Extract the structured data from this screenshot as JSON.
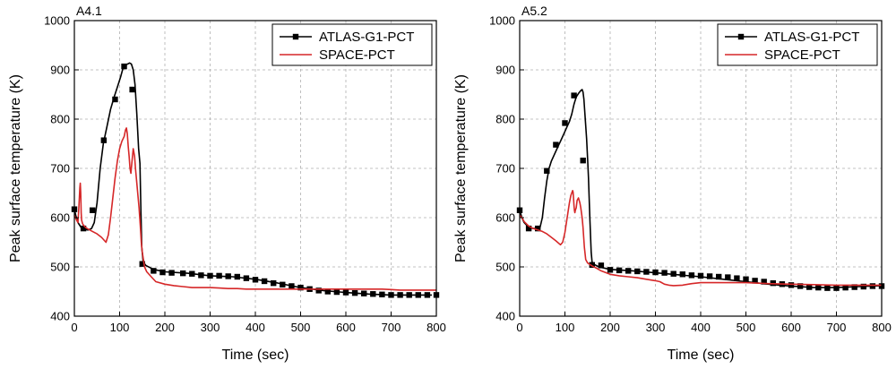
{
  "chart_data": [
    {
      "type": "line",
      "title": "A4.1",
      "xlabel": "Time (sec)",
      "ylabel": "Peak surface temperature (K)",
      "xlim": [
        0,
        800
      ],
      "ylim": [
        400,
        1000
      ],
      "xticks": [
        0,
        100,
        200,
        300,
        400,
        500,
        600,
        700,
        800
      ],
      "yticks": [
        400,
        500,
        600,
        700,
        800,
        900,
        1000
      ],
      "grid": true,
      "legend_position": "top-right",
      "series": [
        {
          "name": "ATLAS-G1-PCT",
          "color": "#000000",
          "marker": "square",
          "x": [
            0,
            3,
            8,
            15,
            22,
            30,
            38,
            44,
            50,
            57,
            64,
            72,
            80,
            88,
            95,
            102,
            108,
            113,
            118,
            122,
            126,
            130,
            134,
            138,
            142,
            145,
            147,
            149,
            152,
            158,
            175,
            200,
            250,
            300,
            350,
            400,
            450,
            500,
            550,
            600,
            650,
            700,
            750,
            790
          ],
          "y": [
            617,
            605,
            590,
            580,
            577,
            575,
            578,
            590,
            630,
            700,
            750,
            785,
            820,
            845,
            865,
            885,
            905,
            910,
            912,
            914,
            912,
            900,
            870,
            810,
            740,
            710,
            620,
            540,
            510,
            503,
            495,
            490,
            487,
            482,
            480,
            475,
            467,
            458,
            452,
            448,
            445,
            443,
            443,
            443
          ],
          "markers_x": [
            0,
            20,
            40,
            65,
            90,
            110,
            128,
            150,
            175,
            195,
            215,
            240,
            260,
            280,
            300,
            320,
            340,
            360,
            380,
            400,
            420,
            440,
            460,
            480,
            500,
            520,
            540,
            560,
            580,
            600,
            620,
            640,
            660,
            680,
            700,
            720,
            740,
            760,
            780,
            800
          ],
          "markers_y": [
            617,
            578,
            615,
            757,
            840,
            907,
            860,
            506,
            492,
            489,
            488,
            487,
            486,
            483,
            482,
            482,
            481,
            480,
            477,
            474,
            471,
            467,
            464,
            461,
            458,
            455,
            452,
            450,
            449,
            448,
            447,
            446,
            445,
            444,
            443,
            443,
            443,
            443,
            443,
            443
          ]
        },
        {
          "name": "SPACE-PCT",
          "color": "#d62728",
          "marker": "none",
          "x": [
            0,
            5,
            8,
            10,
            12,
            13,
            14,
            15,
            16,
            18,
            20,
            25,
            30,
            40,
            50,
            60,
            70,
            75,
            80,
            85,
            90,
            95,
            100,
            105,
            110,
            113,
            115,
            117,
            119,
            121,
            123,
            125,
            127,
            130,
            133,
            135,
            137,
            140,
            143,
            146,
            148,
            150,
            155,
            160,
            170,
            180,
            200,
            220,
            240,
            260,
            280,
            300,
            320,
            340,
            360,
            380,
            400,
            420,
            440,
            460,
            480,
            500,
            520,
            540,
            560,
            580,
            600,
            620,
            640,
            660,
            680,
            700,
            720,
            740,
            760,
            780,
            800
          ],
          "y": [
            605,
            595,
            590,
            620,
            660,
            670,
            650,
            610,
            595,
            588,
            585,
            580,
            577,
            572,
            567,
            560,
            550,
            565,
            600,
            640,
            680,
            715,
            740,
            755,
            765,
            778,
            782,
            770,
            745,
            725,
            700,
            690,
            710,
            740,
            725,
            700,
            680,
            650,
            620,
            580,
            550,
            530,
            500,
            490,
            480,
            470,
            465,
            462,
            460,
            458,
            458,
            458,
            457,
            456,
            456,
            455,
            455,
            455,
            455,
            455,
            455,
            455,
            455,
            455,
            455,
            455,
            455,
            455,
            455,
            455,
            455,
            454,
            453,
            453,
            453,
            453,
            453
          ]
        }
      ]
    },
    {
      "type": "line",
      "title": "A5.2",
      "xlabel": "Time (sec)",
      "ylabel": "Peak surface temperature (K)",
      "xlim": [
        0,
        800
      ],
      "ylim": [
        400,
        1000
      ],
      "xticks": [
        0,
        100,
        200,
        300,
        400,
        500,
        600,
        700,
        800
      ],
      "yticks": [
        400,
        500,
        600,
        700,
        800,
        900,
        1000
      ],
      "grid": true,
      "legend_position": "top-right",
      "series": [
        {
          "name": "ATLAS-G1-PCT",
          "color": "#000000",
          "marker": "square",
          "x": [
            0,
            5,
            10,
            20,
            30,
            40,
            45,
            50,
            55,
            60,
            65,
            70,
            75,
            80,
            85,
            90,
            95,
            100,
            105,
            110,
            115,
            120,
            125,
            130,
            135,
            138,
            140,
            142,
            145,
            148,
            150,
            152,
            155,
            158,
            160,
            165,
            175,
            200,
            250,
            300,
            350,
            400,
            450,
            500,
            550,
            600,
            650,
            700,
            750,
            800
          ],
          "y": [
            615,
            600,
            590,
            580,
            578,
            578,
            580,
            600,
            640,
            675,
            700,
            715,
            725,
            735,
            745,
            755,
            765,
            775,
            785,
            795,
            810,
            830,
            845,
            852,
            858,
            860,
            855,
            840,
            800,
            760,
            720,
            680,
            600,
            530,
            510,
            505,
            500,
            495,
            492,
            488,
            484,
            480,
            475,
            470,
            465,
            461,
            458,
            458,
            460,
            462
          ],
          "markers_x": [
            0,
            20,
            40,
            60,
            80,
            100,
            120,
            140,
            160,
            180,
            200,
            220,
            240,
            260,
            280,
            300,
            320,
            340,
            360,
            380,
            400,
            420,
            440,
            460,
            480,
            500,
            520,
            540,
            560,
            580,
            600,
            620,
            640,
            660,
            680,
            700,
            720,
            740,
            760,
            780,
            800
          ],
          "markers_y": [
            615,
            578,
            578,
            695,
            748,
            792,
            848,
            716,
            504,
            503,
            494,
            493,
            492,
            491,
            490,
            489,
            488,
            486,
            485,
            483,
            482,
            481,
            480,
            479,
            477,
            475,
            472,
            470,
            467,
            465,
            463,
            461,
            459,
            458,
            457,
            457,
            458,
            459,
            460,
            461,
            461
          ]
        },
        {
          "name": "SPACE-PCT",
          "color": "#d62728",
          "marker": "none",
          "x": [
            0,
            5,
            10,
            20,
            30,
            40,
            50,
            60,
            70,
            80,
            90,
            95,
            100,
            105,
            110,
            113,
            115,
            117,
            118,
            119,
            120,
            121,
            122,
            123,
            125,
            127,
            130,
            133,
            135,
            138,
            140,
            143,
            146,
            150,
            155,
            160,
            170,
            180,
            200,
            220,
            240,
            260,
            280,
            300,
            310,
            320,
            330,
            340,
            360,
            380,
            400,
            450,
            500,
            550,
            600,
            650,
            700,
            750,
            800
          ],
          "y": [
            605,
            600,
            592,
            583,
            578,
            575,
            572,
            567,
            560,
            553,
            545,
            550,
            570,
            600,
            630,
            645,
            650,
            655,
            652,
            640,
            625,
            615,
            610,
            615,
            620,
            635,
            640,
            630,
            620,
            600,
            580,
            540,
            515,
            508,
            505,
            502,
            497,
            492,
            485,
            482,
            480,
            478,
            475,
            472,
            470,
            465,
            463,
            462,
            463,
            466,
            468,
            468,
            468,
            466,
            465,
            464,
            463,
            463,
            463
          ]
        }
      ]
    }
  ]
}
